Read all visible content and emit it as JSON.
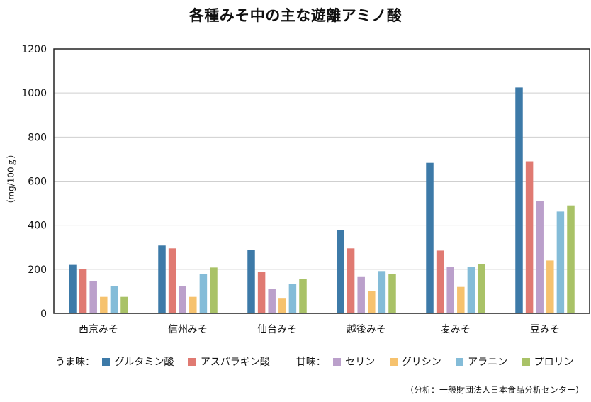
{
  "chart_data": {
    "type": "bar",
    "title": "各種みそ中の主な遊離アミノ酸",
    "ylabel": "（mg/100ｇ）",
    "xlabel": "",
    "ylim": [
      0,
      1200
    ],
    "yticks": [
      "0",
      "200",
      "400",
      "600",
      "800",
      "1000",
      "1200"
    ],
    "grid": true,
    "legend_position": "bottom",
    "categories": [
      "西京みそ",
      "信州みそ",
      "仙台みそ",
      "越後みそ",
      "麦みそ",
      "豆みそ"
    ],
    "series": [
      {
        "name": "グルタミン酸",
        "color": "#3d7aa8",
        "values": [
          220,
          308,
          288,
          378,
          683,
          1025
        ]
      },
      {
        "name": "アスパラギン酸",
        "color": "#e07a72",
        "values": [
          200,
          295,
          187,
          295,
          285,
          690
        ]
      },
      {
        "name": "セリン",
        "color": "#bba0cb",
        "values": [
          148,
          125,
          112,
          168,
          212,
          510
        ]
      },
      {
        "name": "グリシン",
        "color": "#f6c26e",
        "values": [
          75,
          75,
          67,
          100,
          120,
          240
        ]
      },
      {
        "name": "アラニン",
        "color": "#84bcd8",
        "values": [
          125,
          177,
          132,
          192,
          210,
          462
        ]
      },
      {
        "name": "プロリン",
        "color": "#a9c267",
        "values": [
          75,
          208,
          155,
          180,
          225,
          490
        ]
      }
    ]
  },
  "legend": {
    "umami_label": "うま味：",
    "sweet_label": "甘味："
  },
  "source": "（分析：一般財団法人日本食品分析センター）"
}
